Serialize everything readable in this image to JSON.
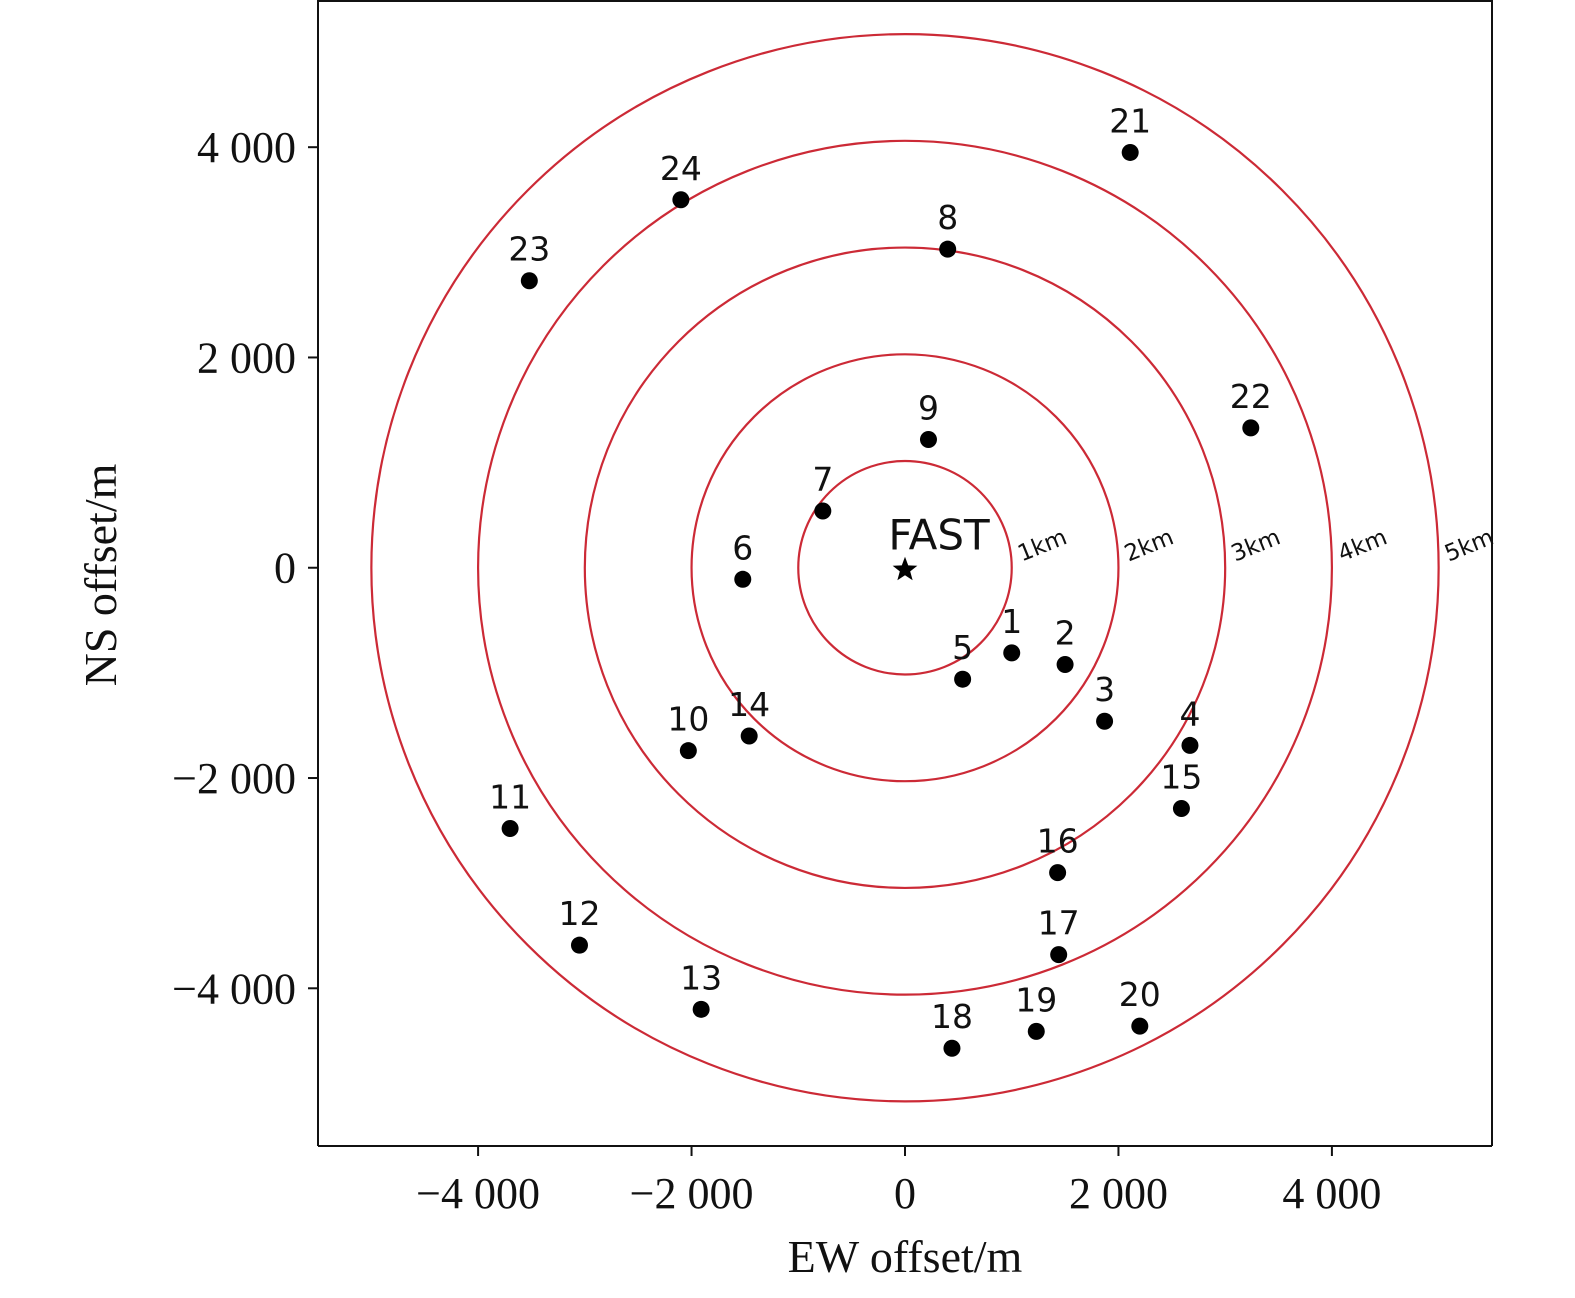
{
  "chart_data": {
    "type": "scatter",
    "xlabel": "EW offset/m",
    "ylabel": "NS offset/m",
    "xlim": [
      -5500,
      5500
    ],
    "ylim": [
      -5500,
      5400
    ],
    "xticks": [
      -4000,
      -2000,
      0,
      2000,
      4000
    ],
    "yticks": [
      -4000,
      -2000,
      0,
      2000,
      4000
    ],
    "xtick_labels": [
      "−4 000",
      "−2 000",
      "0",
      "2 000",
      "4 000"
    ],
    "ytick_labels": [
      "−4 000",
      "−2 000",
      "0",
      "2 000",
      "4 000"
    ],
    "grid": false,
    "ring_color": "#cc2a36",
    "marker_color": "#000000",
    "center": {
      "label": "FAST",
      "x": 0,
      "y": 0,
      "marker": "star-icon"
    },
    "rings": [
      {
        "radius": 1000,
        "label": "1km"
      },
      {
        "radius": 2000,
        "label": "2km"
      },
      {
        "radius": 3000,
        "label": "3km"
      },
      {
        "radius": 4000,
        "label": "4km"
      },
      {
        "radius": 5000,
        "label": "5km"
      }
    ],
    "points": [
      {
        "label": "1",
        "x": 1000,
        "y": -810
      },
      {
        "label": "2",
        "x": 1500,
        "y": -920
      },
      {
        "label": "3",
        "x": 1870,
        "y": -1460
      },
      {
        "label": "4",
        "x": 2670,
        "y": -1690
      },
      {
        "label": "5",
        "x": 540,
        "y": -1060
      },
      {
        "label": "6",
        "x": -1520,
        "y": -110
      },
      {
        "label": "7",
        "x": -770,
        "y": 540
      },
      {
        "label": "8",
        "x": 400,
        "y": 3030
      },
      {
        "label": "9",
        "x": 220,
        "y": 1220
      },
      {
        "label": "10",
        "x": -2030,
        "y": -1740
      },
      {
        "label": "11",
        "x": -3700,
        "y": -2480
      },
      {
        "label": "12",
        "x": -3050,
        "y": -3590
      },
      {
        "label": "13",
        "x": -1910,
        "y": -4200
      },
      {
        "label": "14",
        "x": -1460,
        "y": -1600
      },
      {
        "label": "15",
        "x": 2590,
        "y": -2290
      },
      {
        "label": "16",
        "x": 1430,
        "y": -2900
      },
      {
        "label": "17",
        "x": 1440,
        "y": -3680
      },
      {
        "label": "18",
        "x": 440,
        "y": -4570
      },
      {
        "label": "19",
        "x": 1230,
        "y": -4410
      },
      {
        "label": "20",
        "x": 2200,
        "y": -4360
      },
      {
        "label": "21",
        "x": 2110,
        "y": 3950
      },
      {
        "label": "22",
        "x": 3240,
        "y": 1330
      },
      {
        "label": "23",
        "x": -3520,
        "y": 2730
      },
      {
        "label": "24",
        "x": -2100,
        "y": 3500
      }
    ]
  }
}
